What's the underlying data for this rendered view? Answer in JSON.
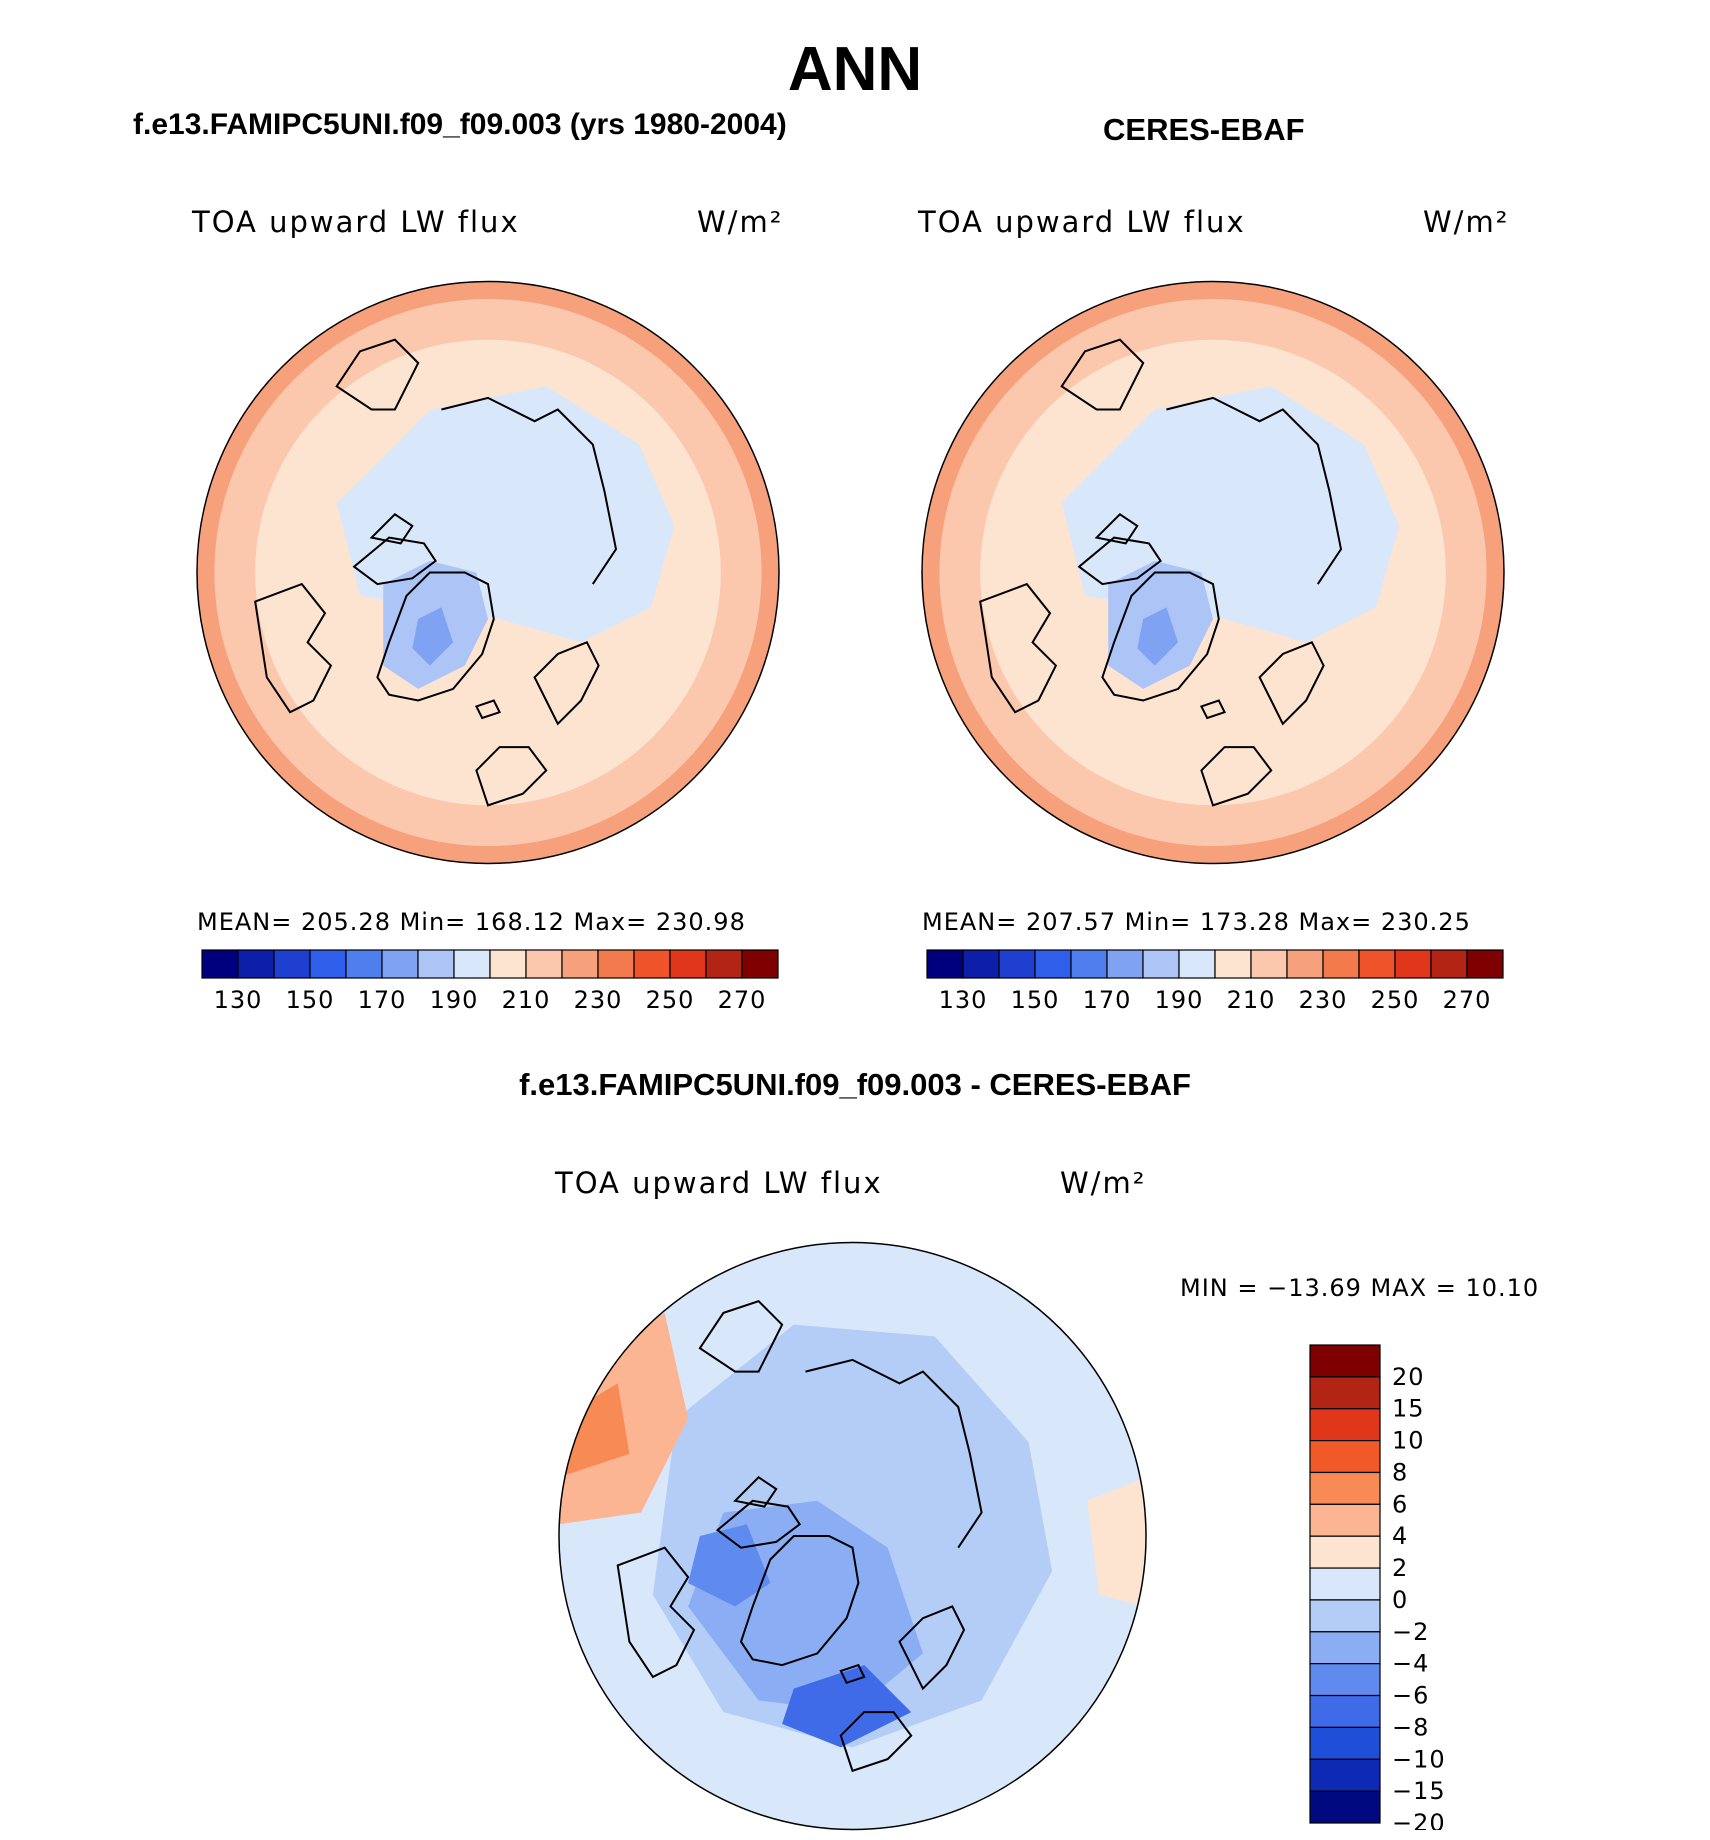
{
  "title": "ANN",
  "panels": {
    "model": {
      "case_title": "f.e13.FAMIPC5UNI.f09_f09.003 (yrs 1980-2004)",
      "field": "TOA upward LW flux",
      "units": "W/m²",
      "stats": "MEAN= 205.28   Min= 168.12   Max= 230.98"
    },
    "obs": {
      "case_title": "CERES-EBAF",
      "field": "TOA upward LW flux",
      "units": "W/m²",
      "stats": "MEAN= 207.57   Min= 173.28   Max= 230.25"
    },
    "diff": {
      "case_title": "f.e13.FAMIPC5UNI.f09_f09.003 - CERES-EBAF",
      "field": "TOA upward LW flux",
      "units": "W/m²",
      "stats": "MIN = −13.69 MAX =   10.10"
    }
  },
  "chart_data": [
    {
      "type": "heatmap",
      "projection": "north polar stereographic",
      "title": "TOA upward LW flux",
      "units": "W/m²",
      "mean": 205.28,
      "min": 168.12,
      "max": 230.98,
      "colorbar": {
        "levels": [
          130,
          140,
          150,
          160,
          170,
          180,
          190,
          200,
          210,
          220,
          230,
          240,
          250,
          260,
          270
        ],
        "tick_labels": [
          "130",
          "150",
          "170",
          "190",
          "210",
          "230",
          "250",
          "270"
        ],
        "colors": [
          "#00007f",
          "#0d1fa8",
          "#1f3fd0",
          "#2f5fea",
          "#4f7fef",
          "#7fa2f3",
          "#adc4f6",
          "#d8e8fa",
          "#fde4d0",
          "#fcc8ad",
          "#f7a07c",
          "#f37a4d",
          "#ef5329",
          "#e0361a",
          "#b22414",
          "#7f0000"
        ]
      }
    },
    {
      "type": "heatmap",
      "projection": "north polar stereographic",
      "title": "TOA upward LW flux",
      "units": "W/m²",
      "mean": 207.57,
      "min": 173.28,
      "max": 230.25,
      "colorbar": {
        "levels": [
          130,
          140,
          150,
          160,
          170,
          180,
          190,
          200,
          210,
          220,
          230,
          240,
          250,
          260,
          270
        ],
        "tick_labels": [
          "130",
          "150",
          "170",
          "190",
          "210",
          "230",
          "250",
          "270"
        ],
        "colors": [
          "#00007f",
          "#0d1fa8",
          "#1f3fd0",
          "#2f5fea",
          "#4f7fef",
          "#7fa2f3",
          "#adc4f6",
          "#d8e8fa",
          "#fde4d0",
          "#fcc8ad",
          "#f7a07c",
          "#f37a4d",
          "#ef5329",
          "#e0361a",
          "#b22414",
          "#7f0000"
        ]
      }
    },
    {
      "type": "heatmap",
      "projection": "north polar stereographic",
      "title": "TOA upward LW flux",
      "units": "W/m²",
      "min": -13.69,
      "max": 10.1,
      "colorbar": {
        "tick_labels": [
          "20",
          "15",
          "10",
          "8",
          "6",
          "4",
          "2",
          "0",
          "−2",
          "−4",
          "−6",
          "−8",
          "−10",
          "−15",
          "−20"
        ],
        "colors": [
          "#7f0000",
          "#b22414",
          "#e0361a",
          "#f15a28",
          "#f78a55",
          "#fbb593",
          "#fde4d0",
          "#d8e8fa",
          "#b3cdf7",
          "#8badf3",
          "#5f8bef",
          "#3f6ae8",
          "#1f4ed8",
          "#0e2ab4",
          "#00097f"
        ]
      }
    }
  ]
}
